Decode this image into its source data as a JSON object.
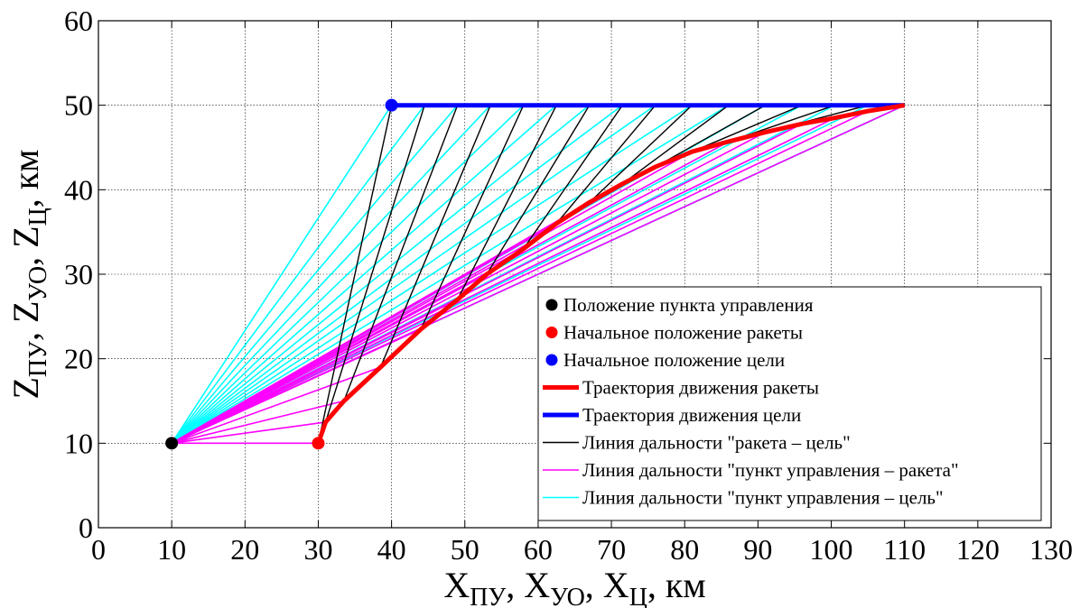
{
  "chart_data": {
    "type": "line",
    "xlabel": {
      "main": "X",
      "parts": [
        {
          "sub": "ПУ",
          "sep": ", X"
        },
        {
          "sub": "УО",
          "sep": ", X"
        },
        {
          "sub": "Ц",
          "sep": ", км"
        }
      ]
    },
    "ylabel": {
      "main": "Z",
      "parts": [
        {
          "sub": "ПУ",
          "sep": ", Z"
        },
        {
          "sub": "УО",
          "sep": ", Z"
        },
        {
          "sub": "Ц",
          "sep": ", км"
        }
      ]
    },
    "xlim": [
      0,
      130
    ],
    "ylim": [
      0,
      60
    ],
    "xticks": [
      0,
      10,
      20,
      30,
      40,
      50,
      60,
      70,
      80,
      90,
      100,
      110,
      120,
      130
    ],
    "yticks": [
      0,
      10,
      20,
      30,
      40,
      50,
      60
    ],
    "grid": true,
    "legend_position": "bottom-right",
    "colors": {
      "control_point": "#000000",
      "missile": "#ff0000",
      "target": "#0000ff",
      "missile_target_line": "#000000",
      "control_missile_line": "#ff00ff",
      "control_target_line": "#00ffff"
    },
    "control_point": {
      "x": 10,
      "y": 10
    },
    "missile_start": {
      "x": 30,
      "y": 10
    },
    "target_start": {
      "x": 40,
      "y": 50
    },
    "missile_trajectory": {
      "x": [
        30,
        31,
        33.5,
        38.5,
        44,
        49,
        53,
        58,
        62.5,
        67,
        71.5,
        76,
        81,
        86,
        91,
        96,
        100.5,
        105,
        110
      ],
      "y": [
        10,
        12.5,
        15,
        19,
        23.5,
        27,
        30,
        33,
        36,
        38.5,
        40.7,
        42.7,
        44.5,
        45.7,
        46.8,
        47.8,
        48.5,
        49.3,
        50
      ]
    },
    "target_trajectory": {
      "x": [
        40,
        44.5,
        49,
        53.5,
        58,
        62.5,
        67,
        71.5,
        76,
        81,
        86,
        91,
        96,
        100.5,
        105,
        110
      ],
      "y": [
        50,
        50,
        50,
        50,
        50,
        50,
        50,
        50,
        50,
        50,
        50,
        50,
        50,
        50,
        50,
        50
      ]
    },
    "legend": [
      {
        "label": "Положение пункта управления",
        "kind": "marker",
        "color": "#000000"
      },
      {
        "label": "Начальное положение ракеты",
        "kind": "marker",
        "color": "#ff0000"
      },
      {
        "label": "Начальное положение цели",
        "kind": "marker",
        "color": "#0000ff"
      },
      {
        "label": "Траектория движения ракеты",
        "kind": "thickline",
        "color": "#ff0000"
      },
      {
        "label": "Траектория движения цели",
        "kind": "thickline",
        "color": "#0000ff"
      },
      {
        "label": "Линия дальности \"ракета – цель\"",
        "kind": "line",
        "color": "#000000"
      },
      {
        "label": "Линия дальности \"пункт управления – ракета\"",
        "kind": "line",
        "color": "#ff00ff"
      },
      {
        "label": "Линия дальности \"пункт управления – цель\"",
        "kind": "line",
        "color": "#00ffff"
      }
    ]
  }
}
